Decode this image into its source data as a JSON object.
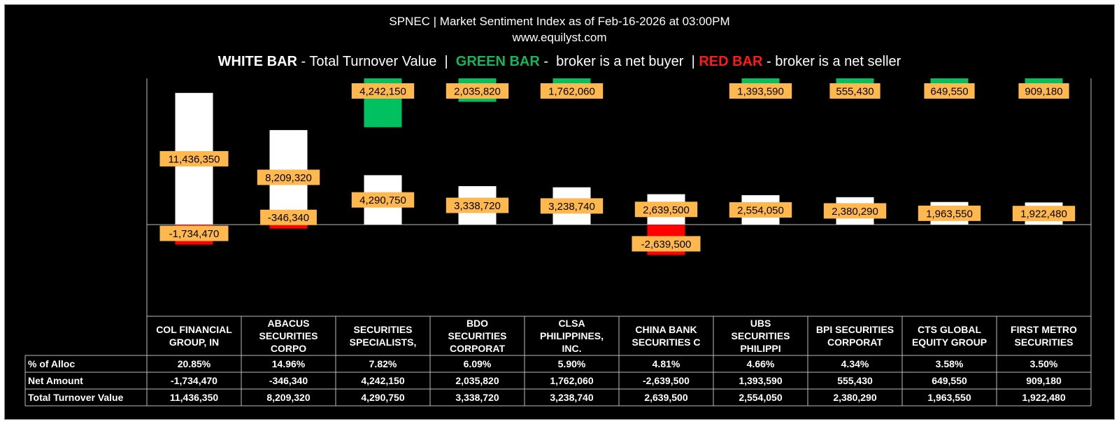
{
  "header": {
    "title": "SPNEC | Market Sentiment Index as of Feb-16-2026 at 03:00PM",
    "website": "www.equilyst.com"
  },
  "legend": {
    "white_label": "WHITE BAR",
    "white_text": " - Total Turnover Value  |  ",
    "green_label": "GREEN BAR",
    "green_text": " -  broker is a net buyer  | ",
    "red_label": "RED BAR",
    "red_text": " - broker is a net seller"
  },
  "colors": {
    "turnover": "#ffffff",
    "net_buyer": "#00c060",
    "net_seller": "#ff0000",
    "label_box": "#ffb84d",
    "background": "#000000"
  },
  "chart_data": {
    "type": "bar",
    "title": "SPNEC | Market Sentiment Index as of Feb-16-2026 at 03:00PM",
    "categories": [
      [
        "COL FINANCIAL",
        "GROUP, IN"
      ],
      [
        "ABACUS",
        "SECURITIES",
        "CORPO"
      ],
      [
        "SECURITIES",
        "SPECIALISTS,"
      ],
      [
        "BDO",
        "SECURITIES",
        "CORPORAT"
      ],
      [
        "CLSA",
        "PHILIPPINES,",
        "INC."
      ],
      [
        "CHINA BANK",
        "SECURITIES C"
      ],
      [
        "UBS",
        "SECURITIES",
        "PHILIPPI"
      ],
      [
        "BPI SECURITIES",
        "CORPORAT"
      ],
      [
        "CTS GLOBAL",
        "EQUITY GROUP"
      ],
      [
        "FIRST METRO",
        "SECURITIES"
      ]
    ],
    "series": [
      {
        "name": "Total Turnover Value",
        "values": [
          11436350,
          8209320,
          4290750,
          3338720,
          3238740,
          2639500,
          2554050,
          2380290,
          1963550,
          1922480
        ]
      },
      {
        "name": "Net Amount",
        "values": [
          -1734470,
          -346340,
          4242150,
          2035820,
          1762060,
          -2639500,
          1393590,
          555430,
          649550,
          909180
        ]
      }
    ],
    "table": {
      "rows": [
        {
          "label": "% of Alloc",
          "values": [
            "20.85%",
            "14.96%",
            "7.82%",
            "6.09%",
            "5.90%",
            "4.81%",
            "4.66%",
            "4.34%",
            "3.58%",
            "3.50%"
          ]
        },
        {
          "label": "Net Amount",
          "values": [
            "-1,734,470",
            "-346,340",
            "4,242,150",
            "2,035,820",
            "1,762,060",
            "-2,639,500",
            "1,393,590",
            "555,430",
            "649,550",
            "909,180"
          ]
        },
        {
          "label": "Total Turnover Value",
          "values": [
            "11,436,350",
            "8,209,320",
            "4,290,750",
            "3,338,720",
            "3,238,740",
            "2,639,500",
            "2,554,050",
            "2,380,290",
            "1,963,550",
            "1,922,480"
          ]
        }
      ]
    },
    "ylim": [
      -6500000,
      12700000
    ],
    "grid": false,
    "legend_position": "top"
  }
}
